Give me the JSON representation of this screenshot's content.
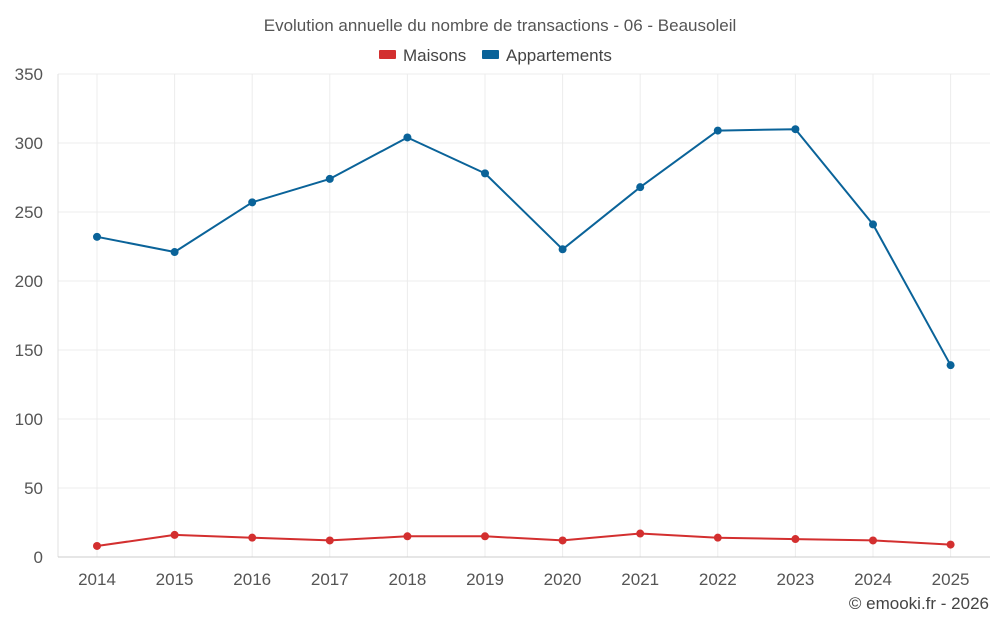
{
  "chart_data": {
    "type": "line",
    "title": "Evolution annuelle du nombre de transactions - 06 - Beausoleil",
    "categories": [
      "2014",
      "2015",
      "2016",
      "2017",
      "2018",
      "2019",
      "2020",
      "2021",
      "2022",
      "2023",
      "2024",
      "2025"
    ],
    "series": [
      {
        "name": "Maisons",
        "color": "#d32f2f",
        "values": [
          8,
          16,
          14,
          12,
          15,
          15,
          12,
          17,
          14,
          13,
          12,
          9
        ]
      },
      {
        "name": "Appartements",
        "color": "#0a6399",
        "values": [
          232,
          221,
          257,
          274,
          304,
          278,
          223,
          268,
          309,
          310,
          241,
          139
        ]
      }
    ],
    "ylim": [
      0,
      350
    ],
    "yticks": [
      0,
      50,
      100,
      150,
      200,
      250,
      300,
      350
    ],
    "xlabel": "",
    "ylabel": "",
    "grid": true,
    "legend_position": "top-center"
  },
  "credit": "© emooki.fr - 2026"
}
